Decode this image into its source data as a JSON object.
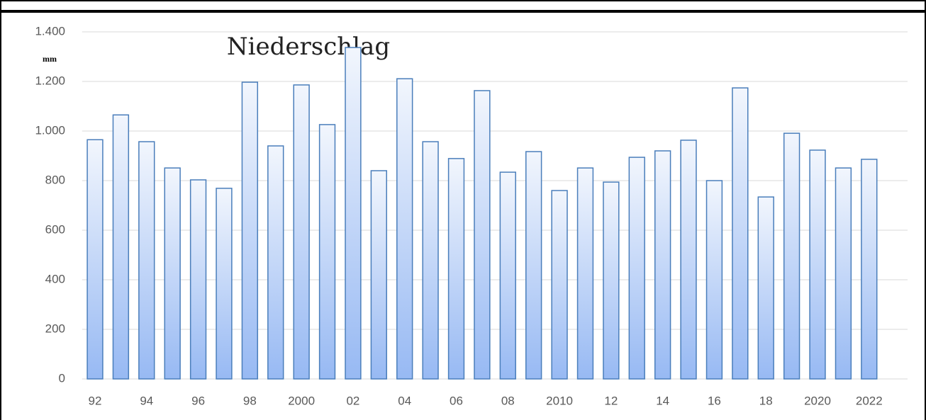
{
  "chart_data": {
    "type": "bar",
    "title": "Niederschlag",
    "y_label": "mm",
    "categories": [
      "92",
      null,
      "94",
      null,
      "96",
      null,
      "98",
      null,
      "2000",
      null,
      "02",
      null,
      "04",
      null,
      "06",
      null,
      "08",
      null,
      "2010",
      null,
      "12",
      null,
      "14",
      null,
      "16",
      null,
      "18",
      null,
      "2020",
      null,
      "2022"
    ],
    "values": [
      965,
      1065,
      957,
      851,
      803,
      769,
      1197,
      940,
      1186,
      1026,
      1337,
      840,
      1211,
      957,
      889,
      1163,
      834,
      917,
      760,
      851,
      794,
      894,
      920,
      963,
      800,
      1174,
      734,
      991,
      923,
      851,
      886
    ],
    "color": "#4a7ebb",
    "ylim": [
      0,
      1400
    ],
    "yticks": [
      0,
      200,
      400,
      600,
      800,
      {
        "value": 1000,
        "label": "1.000"
      },
      {
        "value": 1200,
        "label": "1.200"
      },
      {
        "value": 1400,
        "label": "1.400"
      }
    ],
    "grid": true
  }
}
